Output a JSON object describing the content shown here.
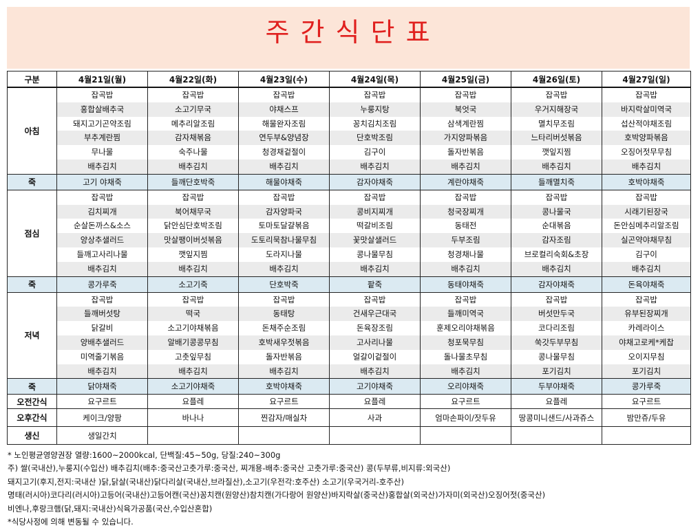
{
  "title": "주 간 식 단 표",
  "header": {
    "label": "구분",
    "days": [
      "4월21일(월)",
      "4월22일(화)",
      "4월23일(수)",
      "4월24일(목)",
      "4월25일(금)",
      "4월26일(토)",
      "4월27일(일)"
    ]
  },
  "breakfast": {
    "label": "아침",
    "days": [
      [
        "잡곡밥",
        "홍합살배추국",
        "돼지고기곤약조림",
        "부추계란찜",
        "무나물",
        "배추김치"
      ],
      [
        "잡곡밥",
        "소고기무국",
        "메추리알조림",
        "감자채볶음",
        "숙주나물",
        "배추김치"
      ],
      [
        "잡곡밥",
        "야채스프",
        "해물완자조림",
        "연두부&양념장",
        "청경채겉절이",
        "배추김치"
      ],
      [
        "잡곡밥",
        "누룽지탕",
        "꽁치김치조림",
        "단호박조림",
        "김구이",
        "배추김치"
      ],
      [
        "잡곡밥",
        "북엇국",
        "삼색계란찜",
        "가지양파볶음",
        "돌자반볶음",
        "배추김치"
      ],
      [
        "잡곡밥",
        "우거지해장국",
        "멸치무조림",
        "느타리버섯볶음",
        "깻잎지찜",
        "배추김치"
      ],
      [
        "잡곡밥",
        "바지락살미역국",
        "섭산적야채조림",
        "호박양파볶음",
        "오징어젓무무침",
        "배추김치"
      ]
    ]
  },
  "juk1": {
    "label": "죽",
    "items": [
      "고기 야채죽",
      "들깨단호박죽",
      "해물야채죽",
      "감자야채죽",
      "계란야채죽",
      "들깨멸치죽",
      "호박야채죽"
    ]
  },
  "lunch": {
    "label": "점심",
    "days": [
      [
        "잡곡밥",
        "김치찌개",
        "순살돈까스&소스",
        "양상추샐러드",
        "들깨고사리나물",
        "배추김치"
      ],
      [
        "잡곡밥",
        "북어채무국",
        "닭안심단호박조림",
        "맛살팽이버섯볶음",
        "깻잎지찜",
        "배추김치"
      ],
      [
        "잡곡밥",
        "감자양파국",
        "토마토달걀볶음",
        "도토리묵참나물무침",
        "도라지나물",
        "배추김치"
      ],
      [
        "잡곡밥",
        "콩비지찌개",
        "떡갈비조림",
        "꽃맛살샐러드",
        "콩나물무침",
        "배추김치"
      ],
      [
        "잡곡밥",
        "청국장찌개",
        "동태전",
        "두부조림",
        "청경채나물",
        "배추김치"
      ],
      [
        "잡곡밥",
        "콩나물국",
        "순대볶음",
        "감자조림",
        "브로컬리숙회&초장",
        "배추김치"
      ],
      [
        "잡곡밥",
        "시래기된장국",
        "돈안심메추리알조림",
        "실곤약야채무침",
        "김구이",
        "배추김치"
      ]
    ]
  },
  "juk2": {
    "label": "죽",
    "items": [
      "콩가루죽",
      "소고기죽",
      "단호박죽",
      "팥죽",
      "동태야채죽",
      "감자야채죽",
      "돈육야채죽"
    ]
  },
  "dinner": {
    "label": "저녁",
    "days": [
      [
        "잡곡밥",
        "들깨버섯탕",
        "닭갈비",
        "양배추샐러드",
        "미역줄기볶음",
        "배추김치"
      ],
      [
        "잡곡밥",
        "떡국",
        "소고기야채볶음",
        "알배기콩콩무침",
        "고춧잎무침",
        "배추김치"
      ],
      [
        "잡곡밥",
        "동태탕",
        "돈채주순조림",
        "호박새우젓볶음",
        "돌자반볶음",
        "배추김치"
      ],
      [
        "잡곡밥",
        "건새우근대국",
        "돈육장조림",
        "고사리나물",
        "얼갈이겉절이",
        "배추김치"
      ],
      [
        "잡곡밥",
        "들깨미역국",
        "훈제오리야채볶음",
        "청포묵무침",
        "돌나물초무침",
        "배추김치"
      ],
      [
        "잡곡밥",
        "버섯만두국",
        "코다리조림",
        "쑥갓두부무침",
        "콩나물무침",
        "포기김치"
      ],
      [
        "잡곡밥",
        "유부된장찌개",
        "카레라이스",
        "야채고로케*케찹",
        "오이지무침",
        "포기김치"
      ]
    ]
  },
  "juk3": {
    "label": "죽",
    "items": [
      "닭야채죽",
      "소고기야채죽",
      "호박야채죽",
      "고기야채죽",
      "오리야채죽",
      "두부야채죽",
      "콩가루죽"
    ]
  },
  "am_snack": {
    "label": "오전간식",
    "items": [
      "요구르트",
      "요플레",
      "요구르트",
      "요플레",
      "요구르트",
      "요플레",
      "요구르트"
    ]
  },
  "pm_snack": {
    "label": "오후간식",
    "items": [
      "케이크/양팡",
      "바나나",
      "찐감자/매실차",
      "사과",
      "엄마손파이/잣두유",
      "땅콩미니샌드/사과쥬스",
      "밤만쥬/두유"
    ]
  },
  "birthday": {
    "label": "생신",
    "items": [
      "생일간치",
      "",
      "",
      "",
      "",
      "",
      ""
    ]
  },
  "notes": [
    "* 노인평균영양권장 열량:1600~2000kcal, 단백질:45~50g, 당질:240~300g",
    "주) 쌀(국내산),누룽지(수입산) 배추김치(배추:중국산고춧가루:중국산, 찌개용-배추:중국산 고춧가루:중국산) 콩(두부류,비지류:외국산)",
    "돼지고기(후지,전지:국내산 )닭,닭살(국내산)닭다리살(국내산,브라질산),소고기(우전각:호주산) 소고기(우국거리-호주산)",
    "명태(러시아)코다리(러시아)고등어(국내산)고등어캔(국산)꽁치캔(원양산)참치캔(가다랑어 원양산)바지락살(중국산)홍합살(외국산)가자미(외국산)오징어젓(중국산)",
    "비엔나,후랑크햄(닭,돼지:국내산)식육가공품(국산,수입산혼합)",
    "*식당사정에 의해 변동될 수 있습니다."
  ]
}
